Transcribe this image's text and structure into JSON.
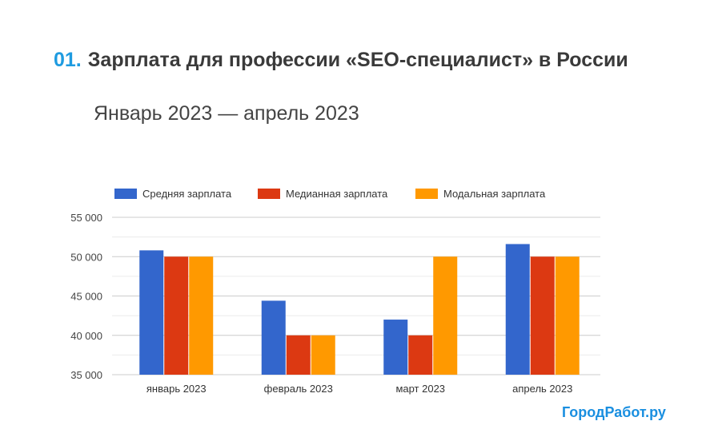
{
  "title": {
    "number": "01.",
    "text": "Зарплата для профессии «SEO-специалист» в России"
  },
  "subtitle": "Январь 2023 — апрель 2023",
  "logo": "ГородРабот.ру",
  "chart_data": {
    "type": "bar",
    "categories": [
      "январь 2023",
      "февраль 2023",
      "март 2023",
      "апрель 2023"
    ],
    "series": [
      {
        "name": "Средняя зарплата",
        "color": "#3366cc",
        "values": [
          50800,
          44400,
          42000,
          51600
        ]
      },
      {
        "name": "Медианная зарплата",
        "color": "#dc3912",
        "values": [
          50000,
          40000,
          40000,
          50000
        ]
      },
      {
        "name": "Модальная зарплата",
        "color": "#ff9900",
        "values": [
          50000,
          40000,
          50000,
          50000
        ]
      }
    ],
    "ylim": [
      35000,
      55000
    ],
    "yticks": [
      "35 000",
      "40 000",
      "45 000",
      "50 000",
      "55 000"
    ],
    "grid": true,
    "legend": "top"
  }
}
